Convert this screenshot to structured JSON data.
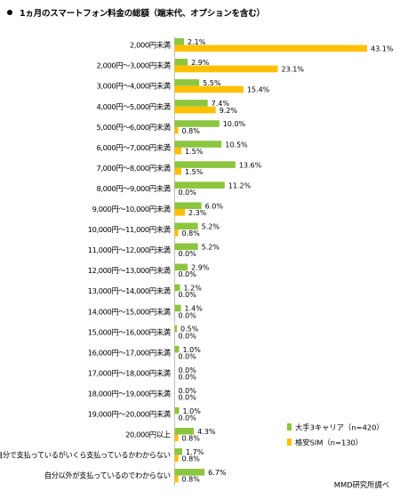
{
  "chart_data": {
    "type": "bar",
    "orientation": "horizontal",
    "title": "1ヵ月のスマートフォン料金の総額（端末代、オプションを含む）",
    "categories": [
      "2,000円未満",
      "2,000円～3,000円未満",
      "3,000円～4,000円未満",
      "4,000円～5,000円未満",
      "5,000円～6,000円未満",
      "6,000円～7,000円未満",
      "7,000円～8,000円未満",
      "8,000円～9,000円未満",
      "9,000円～10,000円未満",
      "10,000円～11,000円未満",
      "11,000円～12,000円未満",
      "12,000円～13,000円未満",
      "13,000円～14,000円未満",
      "14,000円～15,000円未満",
      "15,000円～16,000円未満",
      "16,000円～17,000円未満",
      "17,000円～18,000円未満",
      "18,000円～19,000円未満",
      "19,000円～20,000円未満",
      "20,000円以上",
      "自分で支払っているがいくら支払っているかわからない",
      "自分以外が支払っているのでわからない"
    ],
    "series": [
      {
        "name": "大手3キャリア（n=420）",
        "color": "#8cc63f",
        "values": [
          2.1,
          2.9,
          5.5,
          7.4,
          10.0,
          10.5,
          13.6,
          11.2,
          6.0,
          5.2,
          5.2,
          2.9,
          1.2,
          1.4,
          0.5,
          1.0,
          0.0,
          0.0,
          1.0,
          4.3,
          1.7,
          6.7
        ]
      },
      {
        "name": "格安SIM（n=130）",
        "color": "#ffc000",
        "values": [
          43.1,
          23.1,
          15.4,
          9.2,
          0.8,
          1.5,
          1.5,
          0.0,
          2.3,
          0.8,
          0.0,
          0.0,
          0.0,
          0.0,
          0.0,
          0.0,
          0.0,
          0.0,
          0.0,
          0.8,
          0.8,
          0.8
        ]
      }
    ],
    "unit": "%",
    "legend_position": "bottom-right",
    "grid": false
  },
  "source_note": "MMD研究所調べ"
}
